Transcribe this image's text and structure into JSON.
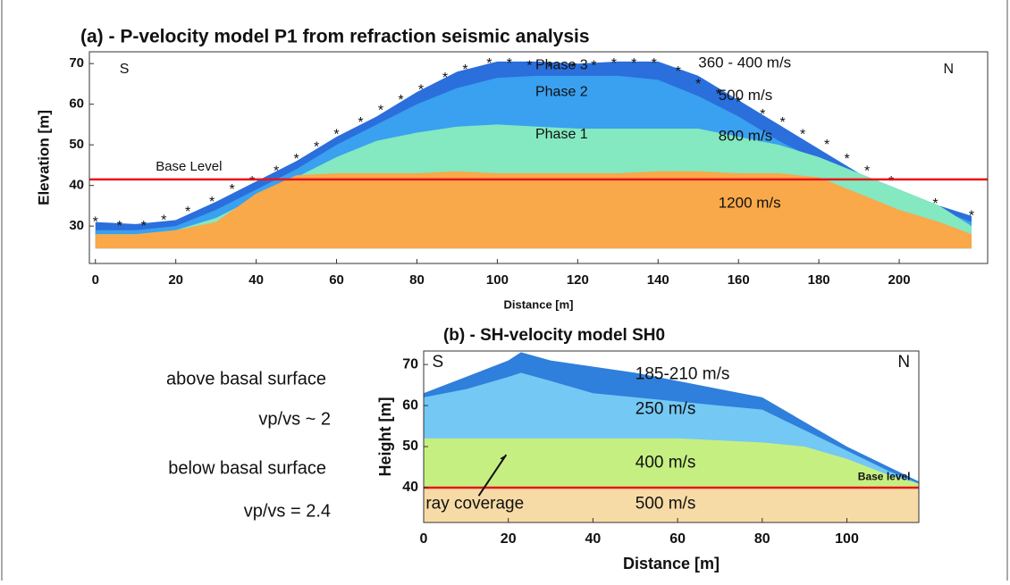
{
  "chart_data": [
    {
      "type": "layered-section",
      "title": "(a) - P-velocity model P1 from refraction seismic analysis",
      "x_label": "Distance [m]",
      "y_label": "Elevation [m]",
      "xlim": [
        -1.5,
        222
      ],
      "ylim": [
        20.8,
        72.9
      ],
      "xticks": [
        0,
        20,
        40,
        60,
        80,
        100,
        120,
        140,
        160,
        180,
        200
      ],
      "yticks": [
        30,
        40,
        50,
        60,
        70
      ],
      "bottom": 24.5,
      "x": [
        0,
        10,
        20,
        30,
        40,
        50,
        60,
        70,
        80,
        90,
        100,
        110,
        120,
        130,
        140,
        150,
        160,
        170,
        180,
        190,
        200,
        210,
        218
      ],
      "layers": [
        {
          "name": "360 - 400 m/s",
          "color": "#2a6fdc",
          "values": [
            31,
            30.5,
            31.5,
            36,
            41,
            46,
            52,
            57,
            63,
            68,
            70.5,
            70.5,
            70,
            70.5,
            70.5,
            67,
            61,
            55,
            49,
            43,
            39,
            35,
            32.5
          ]
        },
        {
          "name": "500 m/s",
          "color": "#3aa0f0",
          "values": [
            29,
            29,
            30,
            34,
            39,
            44,
            50,
            55,
            60,
            64,
            66.5,
            67,
            67,
            67,
            66,
            62,
            57,
            51,
            46,
            41,
            38,
            34,
            31
          ]
        },
        {
          "name": "800 m/s",
          "color": "#84e8c0",
          "values": [
            28,
            28,
            29,
            32,
            37,
            42,
            47,
            51,
            53,
            54.5,
            55,
            54.5,
            54,
            54,
            54,
            54,
            52,
            50,
            47,
            43,
            39,
            35,
            30
          ]
        },
        {
          "name": "1200 m/s",
          "color": "#f9a84a",
          "values": [
            28,
            28,
            29,
            31,
            38,
            42.5,
            43,
            43,
            43,
            43.5,
            43,
            43,
            43,
            43,
            43.5,
            43.5,
            43,
            43,
            42,
            38,
            34,
            31,
            28
          ]
        }
      ],
      "markers": {
        "x": [
          0,
          6,
          12,
          17,
          23,
          29,
          34,
          39,
          45,
          50,
          55,
          60,
          66,
          71,
          76,
          81,
          87,
          92,
          98,
          103,
          108,
          113,
          119,
          124,
          129,
          134,
          139,
          145,
          150,
          155,
          160,
          166,
          171,
          176,
          182,
          187,
          192,
          198,
          209,
          218
        ],
        "y": [
          31.5,
          30.5,
          30.5,
          32,
          34,
          36.5,
          39.5,
          41.5,
          44,
          47,
          50,
          53,
          56,
          59,
          61.5,
          64,
          67,
          69,
          70.5,
          70.5,
          70,
          69.5,
          69.5,
          70,
          70.5,
          70.5,
          70.5,
          68.5,
          65.5,
          63,
          61,
          58,
          56,
          53,
          50.5,
          47,
          44,
          41.5,
          36,
          33
        ]
      },
      "base_level": {
        "label": "Base Level",
        "value": 41.5,
        "color": "#e8141a"
      },
      "annotations": [
        "S",
        "N",
        "Phase 3",
        "Phase 2",
        "Phase 1"
      ]
    },
    {
      "type": "layered-section",
      "title": "(b) - SH-velocity model SH0",
      "x_label": "Distance [m]",
      "y_label": "Height [m]",
      "xlim": [
        0,
        117
      ],
      "ylim": [
        31.5,
        73.3
      ],
      "xticks": [
        0,
        20,
        40,
        60,
        80,
        100
      ],
      "yticks": [
        40,
        50,
        60,
        70
      ],
      "bottom": 31.5,
      "x": [
        0,
        10,
        20,
        23,
        30,
        40,
        50,
        60,
        70,
        80,
        90,
        100,
        110,
        117
      ],
      "layers": [
        {
          "name": "185-210 m/s",
          "color": "#2f7fdc",
          "values": [
            63,
            67,
            71,
            73,
            71,
            69.5,
            68,
            66,
            64,
            62,
            56,
            50,
            45,
            41.5
          ]
        },
        {
          "name": "250 m/s",
          "color": "#74c8f4",
          "values": [
            62,
            64,
            67,
            68,
            66,
            63,
            62,
            61,
            60,
            59,
            54,
            49,
            44,
            41
          ]
        },
        {
          "name": "400 m/s",
          "color": "#c6ef82",
          "values": [
            52,
            52,
            52,
            52,
            52,
            52,
            52,
            52,
            51.5,
            51,
            50,
            47,
            43,
            41
          ]
        },
        {
          "name": "500 m/s",
          "color": "#f7dba6",
          "values": [
            40,
            40,
            40,
            40,
            40,
            40,
            40,
            40,
            40,
            40,
            40,
            40,
            40,
            40
          ]
        }
      ],
      "base_level": {
        "label": "Base level",
        "value": 40,
        "color": "#e8141a"
      },
      "annotations": [
        "S",
        "N",
        "ray coverage"
      ]
    }
  ],
  "notes": [
    "above basal surface",
    "vp/vs ~ 2",
    "below basal surface",
    "vp/vs = 2.4"
  ]
}
